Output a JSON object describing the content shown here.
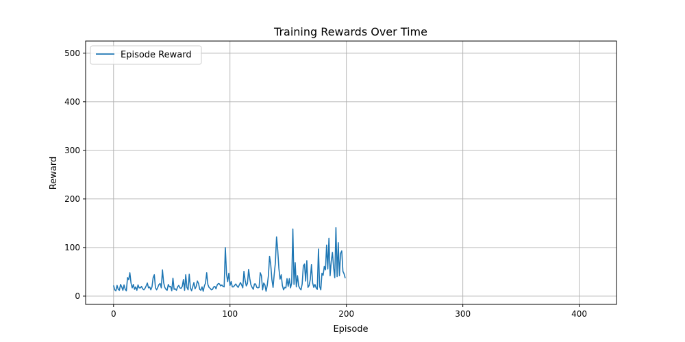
{
  "chart_data": {
    "type": "line",
    "title": "Training Rewards Over Time",
    "xlabel": "Episode",
    "ylabel": "Reward",
    "xlim": [
      -24,
      432
    ],
    "ylim": [
      -17,
      525
    ],
    "xticks": [
      0,
      100,
      200,
      300,
      400
    ],
    "yticks": [
      0,
      100,
      200,
      300,
      400,
      500
    ],
    "grid": true,
    "legend_position": "upper-left",
    "series": [
      {
        "name": "Episode Reward",
        "color": "#1f77b4",
        "x_start": 0,
        "values": [
          22,
          13,
          11,
          22,
          14,
          12,
          24,
          19,
          12,
          23,
          14,
          11,
          38,
          34,
          48,
          27,
          17,
          24,
          14,
          19,
          12,
          23,
          17,
          17,
          20,
          15,
          13,
          16,
          21,
          27,
          17,
          19,
          13,
          19,
          38,
          44,
          17,
          13,
          18,
          24,
          26,
          17,
          54,
          28,
          18,
          14,
          12,
          24,
          19,
          20,
          11,
          37,
          14,
          15,
          12,
          19,
          22,
          17,
          16,
          20,
          34,
          12,
          44,
          18,
          13,
          45,
          17,
          11,
          19,
          28,
          15,
          20,
          31,
          26,
          14,
          12,
          19,
          10,
          21,
          27,
          48,
          24,
          18,
          16,
          13,
          14,
          19,
          20,
          15,
          23,
          26,
          25,
          21,
          23,
          20,
          19,
          100,
          46,
          30,
          47,
          22,
          30,
          19,
          19,
          22,
          25,
          21,
          18,
          23,
          28,
          23,
          17,
          51,
          33,
          21,
          26,
          55,
          36,
          23,
          18,
          14,
          25,
          25,
          18,
          17,
          18,
          48,
          42,
          13,
          27,
          23,
          10,
          22,
          42,
          82,
          65,
          34,
          18,
          45,
          69,
          122,
          95,
          57,
          35,
          44,
          22,
          13,
          18,
          17,
          36,
          20,
          36,
          17,
          27,
          138,
          24,
          69,
          19,
          42,
          21,
          16,
          13,
          25,
          62,
          66,
          31,
          73,
          18,
          22,
          35,
          65,
          27,
          18,
          24,
          17,
          14,
          97,
          20,
          13,
          47,
          43,
          61,
          54,
          105,
          56,
          119,
          42,
          72,
          90,
          59,
          38,
          141,
          40,
          110,
          42,
          88,
          93,
          51,
          46,
          37
        ]
      }
    ]
  }
}
